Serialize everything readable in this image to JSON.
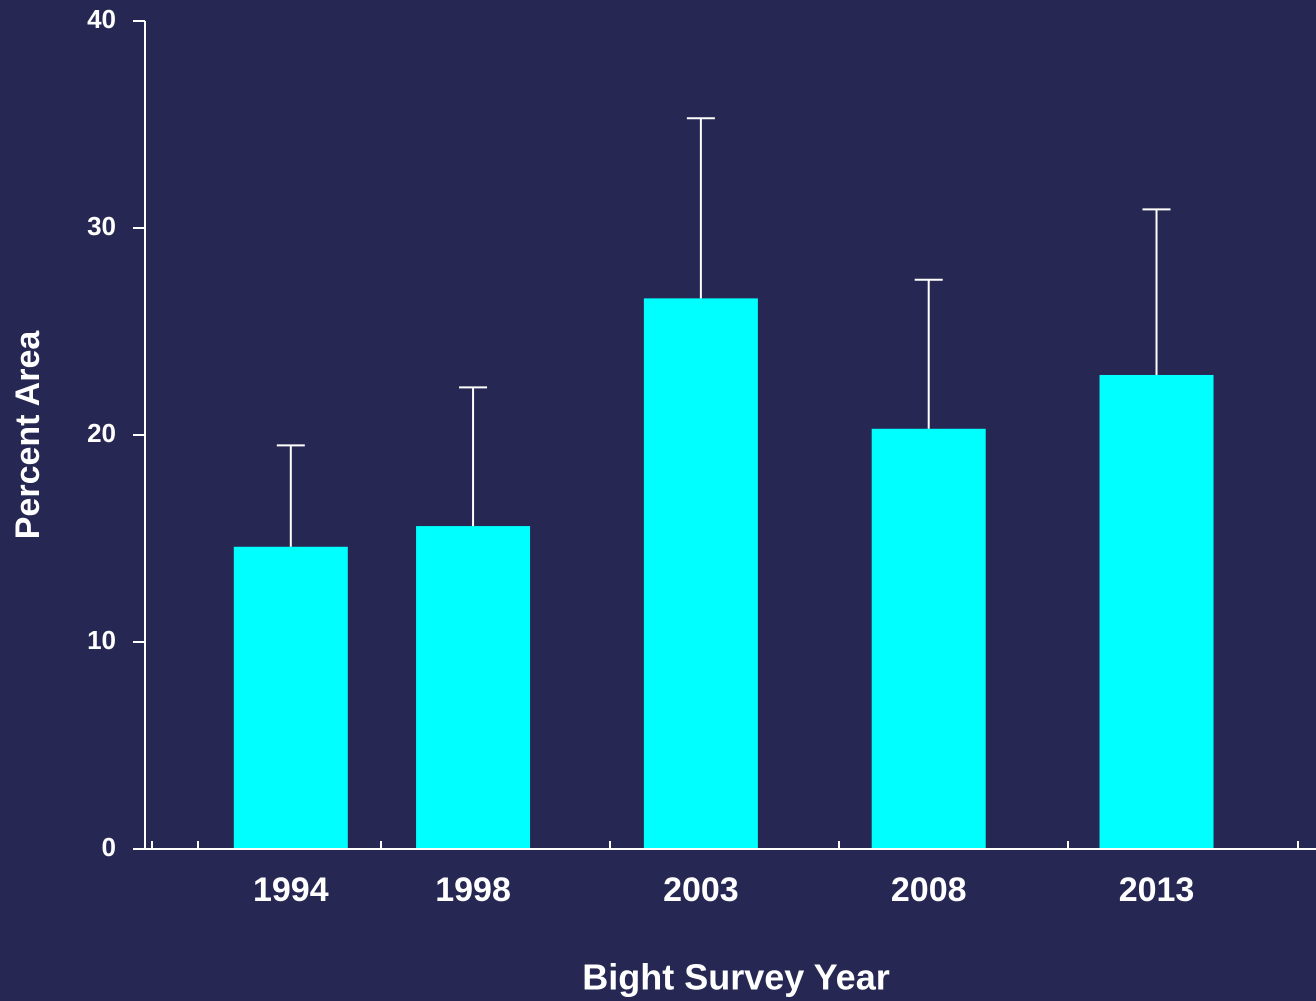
{
  "chart_data": {
    "type": "bar",
    "x_label": "Bight Survey Year",
    "y_label": "Percent Area",
    "x": [
      1994,
      1998,
      2003,
      2008,
      2013
    ],
    "values": [
      14.6,
      15.6,
      26.6,
      20.3,
      22.9
    ],
    "errors": [
      4.9,
      6.7,
      8.7,
      7.2,
      8.0
    ],
    "color": "#00ffff",
    "xlim": [
      1990.8,
      2016.5
    ],
    "xticks": [
      1994,
      1998,
      2003,
      2008,
      2013
    ],
    "ylim": [
      0,
      40
    ],
    "yticks": [
      0,
      10,
      20,
      30,
      40
    ],
    "grid": false
  }
}
